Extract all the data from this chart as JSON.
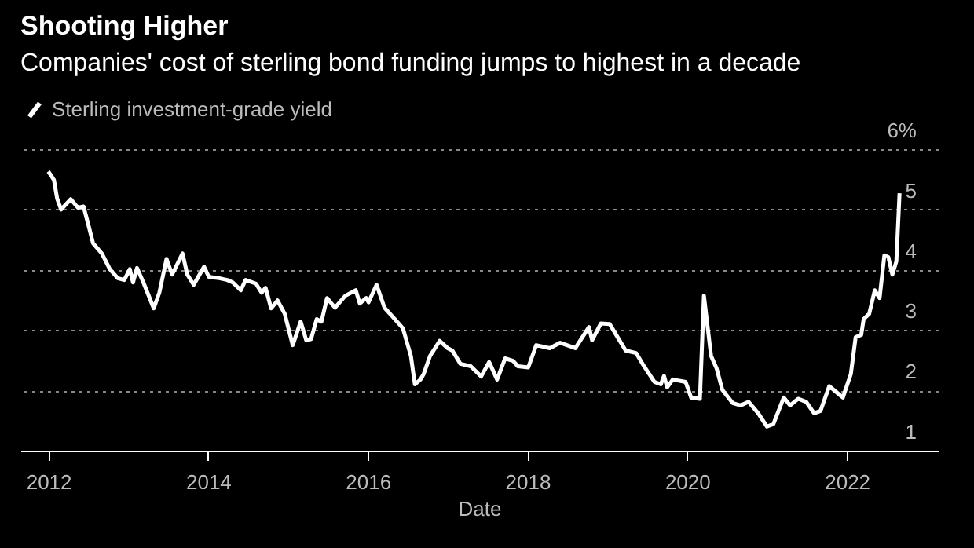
{
  "chart_data": {
    "type": "line",
    "title": "Shooting Higher",
    "subtitle": "Companies' cost of sterling bond funding jumps to highest in a decade",
    "xlabel": "Date",
    "x": [
      2012.0,
      2012.07,
      2012.11,
      2012.16,
      2012.28,
      2012.37,
      2012.44,
      2012.5,
      2012.56,
      2012.67,
      2012.77,
      2012.87,
      2012.95,
      2013.02,
      2013.06,
      2013.11,
      2013.19,
      2013.32,
      2013.39,
      2013.48,
      2013.55,
      2013.68,
      2013.74,
      2013.82,
      2013.95,
      2014.01,
      2014.14,
      2014.24,
      2014.31,
      2014.41,
      2014.47,
      2014.6,
      2014.67,
      2014.72,
      2014.79,
      2014.87,
      2014.96,
      2015.06,
      2015.16,
      2015.23,
      2015.29,
      2015.36,
      2015.42,
      2015.49,
      2015.59,
      2015.72,
      2015.85,
      2015.9,
      2015.98,
      2016.01,
      2016.11,
      2016.21,
      2016.34,
      2016.44,
      2016.54,
      2016.59,
      2016.66,
      2016.7,
      2016.78,
      2016.9,
      2017.0,
      2017.06,
      2017.16,
      2017.29,
      2017.42,
      2017.52,
      2017.62,
      2017.72,
      2017.82,
      2017.88,
      2018.01,
      2018.11,
      2018.28,
      2018.41,
      2018.6,
      2018.77,
      2018.81,
      2018.92,
      2019.03,
      2019.13,
      2019.23,
      2019.36,
      2019.46,
      2019.59,
      2019.67,
      2019.71,
      2019.75,
      2019.82,
      2019.98,
      2020.05,
      2020.16,
      2020.21,
      2020.3,
      2020.37,
      2020.44,
      2020.57,
      2020.67,
      2020.77,
      2020.89,
      2021.0,
      2021.08,
      2021.21,
      2021.29,
      2021.39,
      2021.49,
      2021.59,
      2021.67,
      2021.78,
      2021.87,
      2021.95,
      2022.05,
      2022.11,
      2022.18,
      2022.21,
      2022.28,
      2022.35,
      2022.41,
      2022.47,
      2022.52,
      2022.57,
      2022.62,
      2022.66
    ],
    "series": [
      {
        "name": "Sterling investment-grade yield",
        "color": "#ffffff",
        "values": [
          5.63,
          5.49,
          5.18,
          5.0,
          5.17,
          5.03,
          5.05,
          4.75,
          4.44,
          4.27,
          4.01,
          3.86,
          3.83,
          4.01,
          3.79,
          4.03,
          3.79,
          3.36,
          3.62,
          4.18,
          3.92,
          4.27,
          3.92,
          3.75,
          4.05,
          3.88,
          3.86,
          3.83,
          3.79,
          3.66,
          3.83,
          3.77,
          3.62,
          3.7,
          3.36,
          3.49,
          3.27,
          2.75,
          3.14,
          2.83,
          2.85,
          3.18,
          3.14,
          3.53,
          3.37,
          3.57,
          3.66,
          3.44,
          3.53,
          3.46,
          3.75,
          3.37,
          3.18,
          3.03,
          2.57,
          2.1,
          2.18,
          2.27,
          2.57,
          2.82,
          2.7,
          2.66,
          2.44,
          2.4,
          2.23,
          2.47,
          2.18,
          2.53,
          2.49,
          2.4,
          2.38,
          2.75,
          2.7,
          2.79,
          2.7,
          3.05,
          2.83,
          3.11,
          3.1,
          2.88,
          2.66,
          2.62,
          2.4,
          2.14,
          2.1,
          2.24,
          2.05,
          2.18,
          2.14,
          1.88,
          1.86,
          3.57,
          2.57,
          2.36,
          2.01,
          1.79,
          1.75,
          1.81,
          1.62,
          1.4,
          1.44,
          1.88,
          1.75,
          1.86,
          1.81,
          1.62,
          1.66,
          2.07,
          1.97,
          1.88,
          2.27,
          2.88,
          2.92,
          3.18,
          3.27,
          3.66,
          3.53,
          4.24,
          4.21,
          3.92,
          4.14,
          5.27
        ]
      }
    ],
    "xlim": [
      2011.65,
      2023.14
    ],
    "xticks": [
      2012,
      2014,
      2016,
      2018,
      2020,
      2022
    ],
    "ylim": [
      1,
      6
    ],
    "yticks": [
      1,
      2,
      3,
      4,
      5,
      {
        "value": 6,
        "label": "6%"
      }
    ],
    "grid": "y",
    "legend": "top left",
    "marker": "none",
    "line_style": "solid"
  }
}
